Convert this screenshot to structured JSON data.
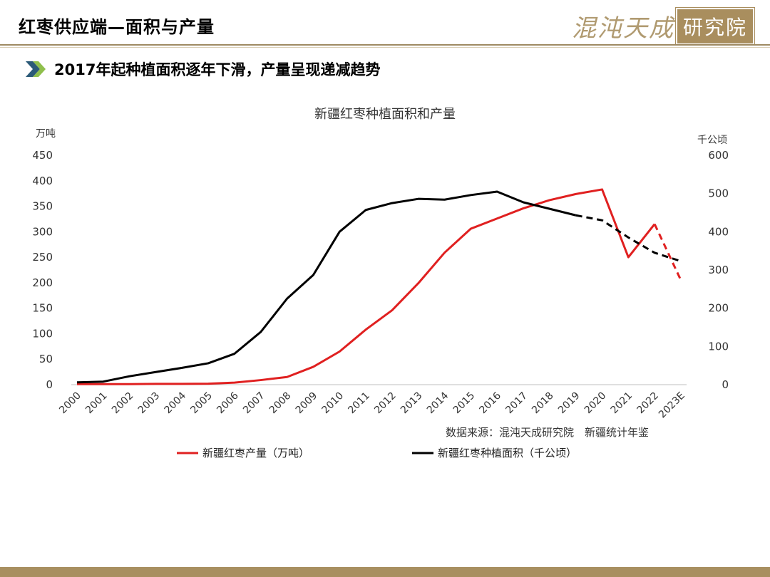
{
  "header": {
    "title": "红枣供应端—面积与产量",
    "logo_main": "混沌天成",
    "logo_box": "研究院"
  },
  "subtitle": "2017年起种植面积逐年下滑，产量呈现递减趋势",
  "colors": {
    "production": "#e02020",
    "area": "#000000",
    "accent_gold": "#a88f60"
  },
  "chart_data": {
    "type": "line",
    "title": "新疆红枣种植面积和产量",
    "y_left_label": "万吨",
    "y_right_label": "千公顷",
    "y_left_lim": [
      0,
      450
    ],
    "y_right_lim": [
      0,
      600
    ],
    "y_left_ticks": [
      "0",
      "50",
      "100",
      "150",
      "200",
      "250",
      "300",
      "350",
      "400",
      "450"
    ],
    "y_right_ticks": [
      "0",
      "100",
      "200",
      "300",
      "400",
      "500",
      "600"
    ],
    "categories": [
      "2000",
      "2001",
      "2002",
      "2003",
      "2004",
      "2005",
      "2006",
      "2007",
      "2008",
      "2009",
      "2010",
      "2011",
      "2012",
      "2013",
      "2014",
      "2015",
      "2016",
      "2017",
      "2018",
      "2019",
      "2020",
      "2021",
      "2022",
      "2023E"
    ],
    "series": [
      {
        "name": "新疆红枣产量（万吨）",
        "axis": "left",
        "color": "#e02020",
        "values": [
          1,
          1,
          1,
          1.5,
          1.5,
          2,
          4,
          9,
          15,
          35,
          65,
          108,
          146,
          199,
          259,
          306,
          326,
          346,
          362,
          374,
          383,
          250,
          315,
          205
        ],
        "dashed_from_index": 22
      },
      {
        "name": "新疆红枣种植面积（千公顷）",
        "axis": "right",
        "color": "#000000",
        "values": [
          6,
          8,
          22,
          33,
          44,
          56,
          81,
          138,
          225,
          287,
          400,
          457,
          475,
          486,
          484,
          496,
          505,
          477,
          460,
          443,
          430,
          385,
          345,
          323
        ],
        "dashed_from_index": 19
      }
    ],
    "source": "数据来源：混沌天成研究院　新疆统计年鉴",
    "legend_position": "bottom"
  }
}
